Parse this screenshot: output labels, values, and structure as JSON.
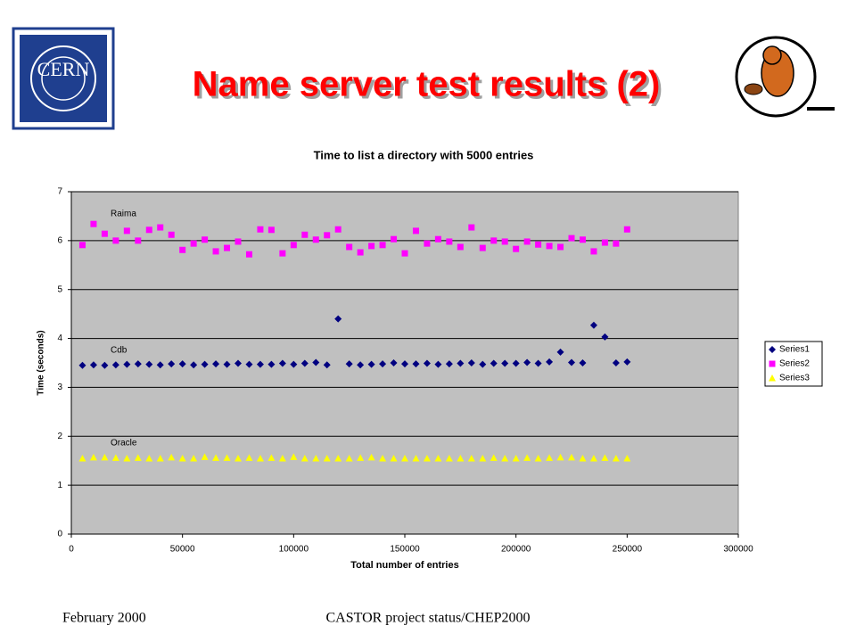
{
  "slide": {
    "title": "Name server test results (2)",
    "logo_text": "CERN",
    "footer_left": "February 2000",
    "footer_center": "CASTOR project status/CHEP2000"
  },
  "chart_data": {
    "type": "scatter",
    "title": "Time to list a directory with 5000 entries",
    "x_label": "Total number of entries",
    "y_label": "Time (seconds)",
    "annotations": [
      "Raima",
      "Cdb",
      "Oracle"
    ],
    "xlim": [
      0,
      300000
    ],
    "xticks": [
      0,
      50000,
      100000,
      150000,
      200000,
      250000,
      300000
    ],
    "ylim": [
      0,
      7
    ],
    "yticks": [
      0,
      1,
      2,
      3,
      4,
      5,
      6,
      7
    ],
    "grid": true,
    "legend": "right",
    "x": [
      5000,
      10000,
      15000,
      20000,
      25000,
      30000,
      35000,
      40000,
      45000,
      50000,
      55000,
      60000,
      65000,
      70000,
      75000,
      80000,
      85000,
      90000,
      95000,
      100000,
      105000,
      110000,
      115000,
      120000,
      125000,
      130000,
      135000,
      140000,
      145000,
      150000,
      155000,
      160000,
      165000,
      170000,
      175000,
      180000,
      185000,
      190000,
      195000,
      200000,
      205000,
      210000,
      215000,
      220000,
      225000,
      230000,
      235000,
      240000,
      245000,
      250000
    ],
    "series": [
      {
        "name": "Series1",
        "color": "#000080",
        "marker": "diamond",
        "values": [
          3.45,
          3.46,
          3.45,
          3.46,
          3.47,
          3.48,
          3.47,
          3.46,
          3.48,
          3.48,
          3.46,
          3.47,
          3.48,
          3.47,
          3.49,
          3.47,
          3.47,
          3.47,
          3.49,
          3.47,
          3.49,
          3.51,
          3.46,
          4.4,
          3.48,
          3.46,
          3.47,
          3.48,
          3.5,
          3.48,
          3.48,
          3.49,
          3.47,
          3.48,
          3.49,
          3.5,
          3.47,
          3.49,
          3.49,
          3.49,
          3.51,
          3.49,
          3.52,
          3.72,
          3.51,
          3.5,
          4.27,
          4.03,
          3.5,
          3.52
        ]
      },
      {
        "name": "Series2",
        "color": "#ff00ff",
        "marker": "square",
        "values": [
          5.91,
          6.34,
          6.14,
          6.0,
          6.2,
          6.0,
          6.22,
          6.27,
          6.12,
          5.81,
          5.94,
          6.02,
          5.78,
          5.85,
          5.98,
          5.72,
          6.23,
          6.22,
          5.74,
          5.91,
          6.12,
          6.02,
          6.11,
          6.23,
          5.87,
          5.76,
          5.89,
          5.91,
          6.03,
          5.74,
          6.2,
          5.94,
          6.03,
          5.98,
          5.87,
          6.27,
          5.85,
          6.0,
          5.98,
          5.83,
          5.98,
          5.92,
          5.89,
          5.87,
          6.05,
          6.02,
          5.78,
          5.96,
          5.94,
          6.23
        ]
      },
      {
        "name": "Series3",
        "color": "#ffff00",
        "marker": "triangle",
        "values": [
          1.55,
          1.57,
          1.57,
          1.56,
          1.55,
          1.56,
          1.55,
          1.55,
          1.57,
          1.55,
          1.55,
          1.58,
          1.56,
          1.56,
          1.55,
          1.56,
          1.55,
          1.56,
          1.55,
          1.58,
          1.55,
          1.55,
          1.55,
          1.55,
          1.55,
          1.56,
          1.57,
          1.55,
          1.55,
          1.55,
          1.55,
          1.55,
          1.55,
          1.55,
          1.55,
          1.55,
          1.55,
          1.56,
          1.55,
          1.55,
          1.56,
          1.55,
          1.56,
          1.57,
          1.57,
          1.55,
          1.55,
          1.56,
          1.55,
          1.55
        ]
      }
    ]
  }
}
